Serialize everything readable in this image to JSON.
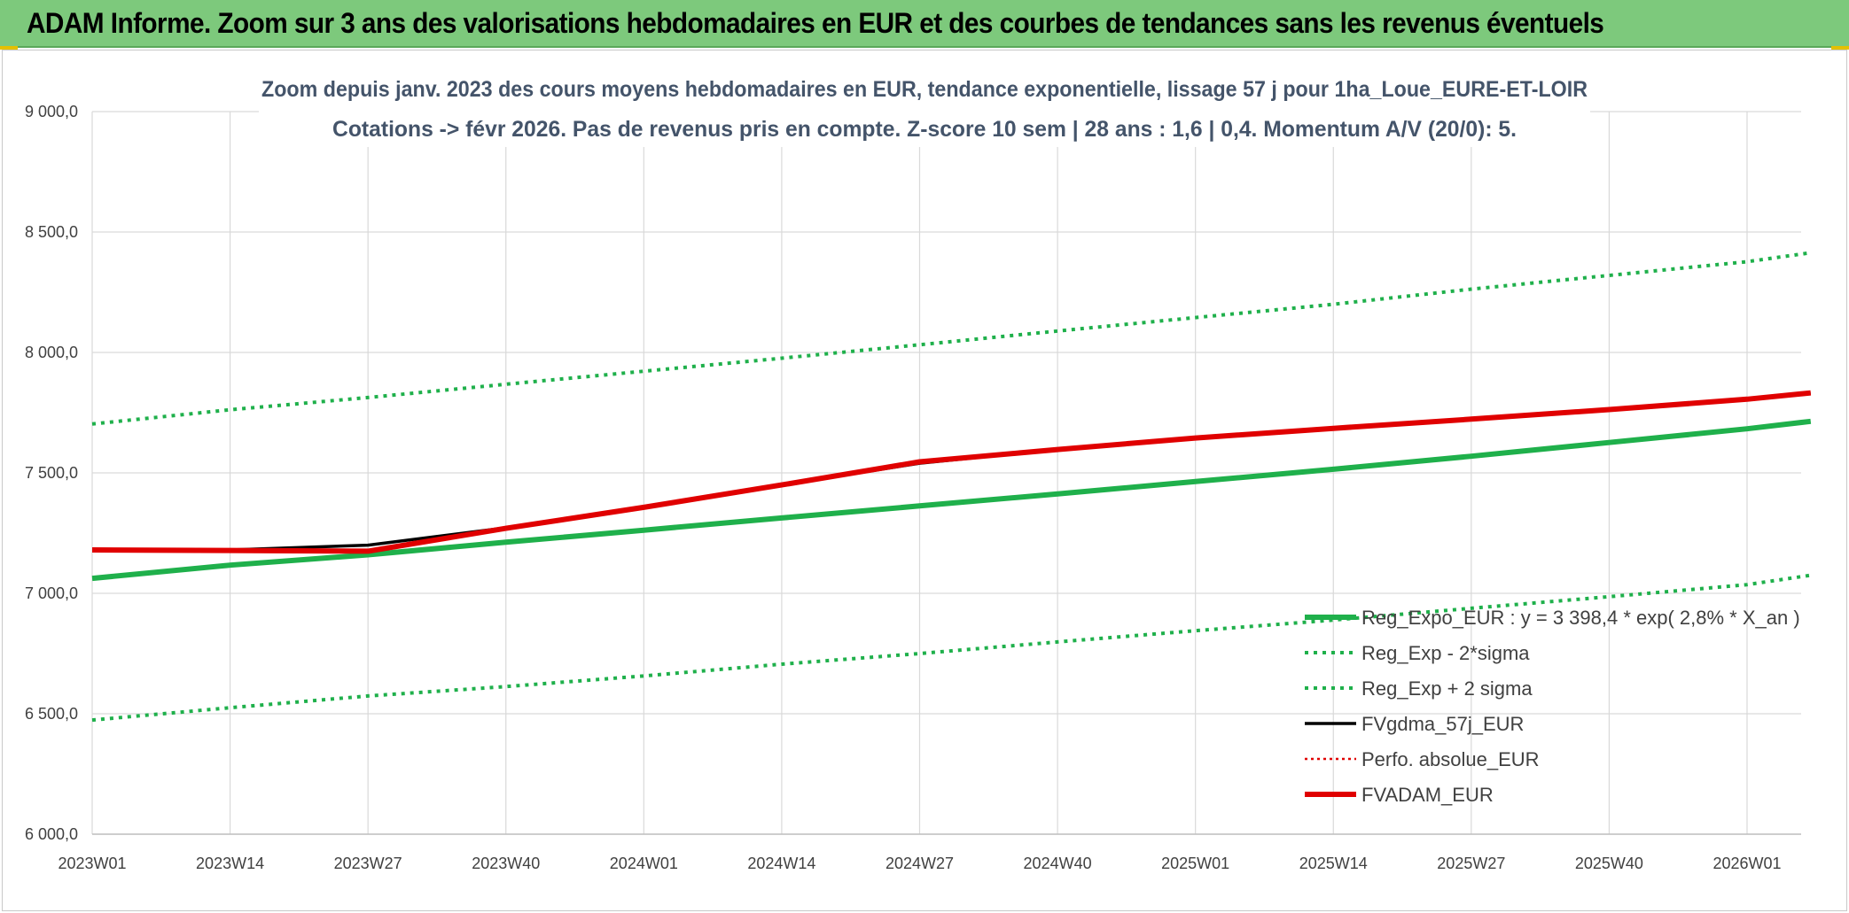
{
  "banner": {
    "title": "ADAM Informe. Zoom sur 3 ans des valorisations hebdomadaires en EUR et des courbes de tendances sans les revenus éventuels"
  },
  "chart_data": {
    "type": "line",
    "title_line1": "Zoom depuis janv. 2023 des cours moyens hebdomadaires en EUR, tendance exponentielle, lissage 57 j pour 1ha_Loue_EURE-ET-LOIR",
    "title_line2": "Cotations -> févr 2026. Pas de revenus pris en compte. Z-score 10 sem | 28 ans : 1,6 | 0,4. Momentum A/V (20/0): 5.",
    "xlabel": "",
    "ylabel": "",
    "ylim": [
      6000,
      9000
    ],
    "y_ticks": [
      "6 000,0",
      "6 500,0",
      "7 000,0",
      "7 500,0",
      "8 000,0",
      "8 500,0",
      "9 000,0"
    ],
    "x_ticks": [
      "2023W01",
      "2023W14",
      "2023W27",
      "2023W40",
      "2024W01",
      "2024W14",
      "2024W27",
      "2024W40",
      "2025W01",
      "2025W14",
      "2025W27",
      "2025W40",
      "2026W01"
    ],
    "grid": true,
    "legend_position": "bottom-right",
    "x_week_index": [
      0,
      13,
      26,
      39,
      52,
      65,
      78,
      91,
      104,
      117,
      130,
      143,
      156,
      162
    ],
    "series": [
      {
        "name": "Reg_Expo_EUR : y = 3 398,4 * exp( 2,8% *  X_an )",
        "color": "#1fb04b",
        "style": "solid-thick",
        "values": [
          7062,
          7117,
          7160,
          7212,
          7262,
          7313,
          7363,
          7413,
          7464,
          7515,
          7569,
          7626,
          7683,
          7714
        ]
      },
      {
        "name": "Reg_Exp - 2*sigma",
        "color": "#1fb04b",
        "style": "dotted",
        "values": [
          6474,
          6525,
          6574,
          6613,
          6657,
          6706,
          6750,
          6798,
          6845,
          6889,
          6938,
          6986,
          7036,
          7075
        ]
      },
      {
        "name": "Reg_Exp + 2 sigma",
        "color": "#1fb04b",
        "style": "dotted",
        "values": [
          7703,
          7762,
          7813,
          7868,
          7922,
          7976,
          8032,
          8089,
          8145,
          8200,
          8263,
          8320,
          8377,
          8414
        ]
      },
      {
        "name": "FVgdma_57j_EUR",
        "color": "#000000",
        "style": "solid",
        "values": [
          7180,
          7180,
          7200,
          7272,
          7358,
          7450,
          7540,
          7597,
          7645,
          7685,
          7723,
          7763,
          7803,
          7829
        ]
      },
      {
        "name": "Perfo. absolue_EUR",
        "color": "#e00000",
        "style": "dotted-thin",
        "values": []
      },
      {
        "name": "FVADAM_EUR",
        "color": "#e00000",
        "style": "solid-thick",
        "values": [
          7180,
          7178,
          7175,
          7270,
          7357,
          7450,
          7546,
          7597,
          7645,
          7685,
          7723,
          7763,
          7806,
          7832
        ]
      }
    ]
  }
}
